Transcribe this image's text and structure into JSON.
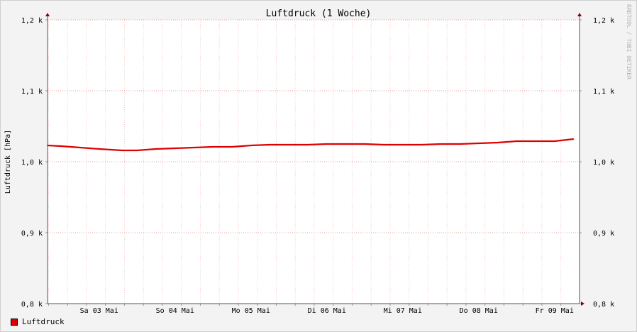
{
  "chart_data": {
    "type": "line",
    "title": "Luftdruck (1 Woche)",
    "ylabel": "Luftdruck [hPa]",
    "ylim": [
      800,
      1200
    ],
    "yticks": [
      800,
      900,
      1000,
      1100,
      1200
    ],
    "ytick_labels": [
      "0,8 k",
      "0,9 k",
      "1,0 k",
      "1,1 k",
      "1,2 k"
    ],
    "xlim": [
      0,
      7
    ],
    "day_labels": [
      "Sa 03 Mai",
      "So 04 Mai",
      "Mo 05 Mai",
      "Di 06 Mai",
      "Mi 07 Mai",
      "Do 08 Mai",
      "Fr 09 Mai"
    ],
    "grid": true,
    "legend_position": "bottom-left",
    "watermark": "RRDTOOL / TOBI OETIKER",
    "colors": {
      "line": "#cc0000",
      "grid": "#e7a2a2",
      "axis": "#555555",
      "arrow": "#8b0000",
      "canvas": "#ffffff",
      "background": "#f3f3f3"
    },
    "series": [
      {
        "name": "Luftdruck",
        "color": "#dd0000",
        "x": [
          -0.18,
          0.0,
          0.25,
          0.5,
          0.8,
          1.0,
          1.25,
          1.5,
          1.75,
          2.0,
          2.25,
          2.5,
          2.75,
          3.0,
          3.25,
          3.5,
          3.75,
          4.0,
          4.25,
          4.5,
          4.75,
          5.0,
          5.25,
          5.5,
          5.75,
          6.0,
          6.25,
          6.5,
          6.75
        ],
        "y": [
          1023,
          1022,
          1020,
          1018,
          1016,
          1016,
          1018,
          1019,
          1020,
          1021,
          1021,
          1023,
          1024,
          1024,
          1024,
          1025,
          1025,
          1025,
          1024,
          1024,
          1024,
          1025,
          1025,
          1026,
          1027,
          1029,
          1029,
          1029,
          1032
        ]
      }
    ]
  }
}
